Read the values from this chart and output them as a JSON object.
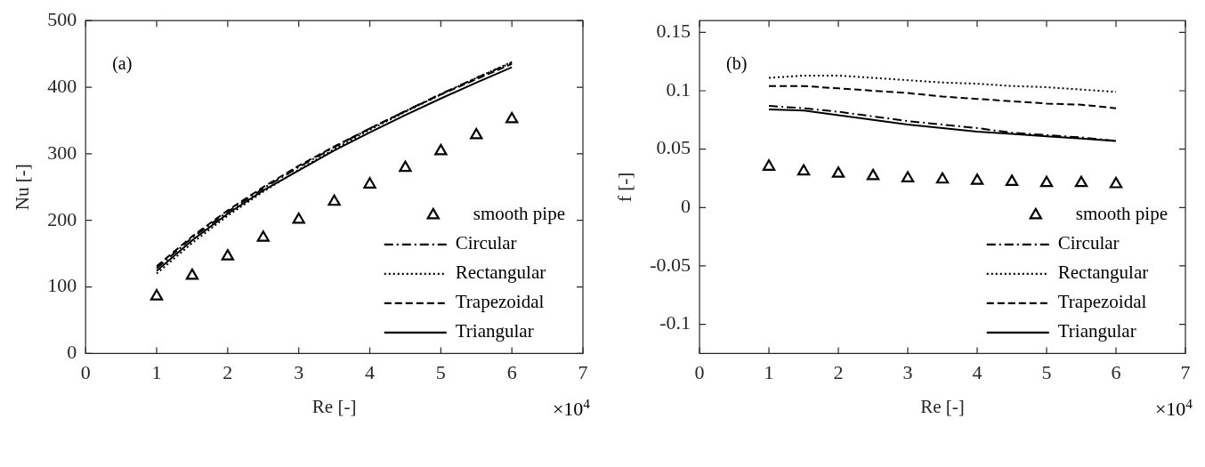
{
  "chart_data": [
    {
      "type": "line",
      "xlabel": "Re [-]",
      "ylabel": "Nu [-]",
      "annotations": [
        "(a)",
        "×10$^{4}$"
      ],
      "x": [
        1,
        1.5,
        2,
        2.5,
        3,
        3.5,
        4,
        4.5,
        5,
        5.5,
        6
      ],
      "xlim": [
        0,
        7
      ],
      "xticks": [
        0,
        1,
        2,
        3,
        4,
        5,
        6,
        7
      ],
      "ylim": [
        0,
        500
      ],
      "yticks": [
        0,
        100,
        200,
        300,
        400,
        500
      ],
      "grid": false,
      "legend": "bottom right",
      "series": [
        {
          "name": "smooth pipe",
          "type": "scatter",
          "marker": "triangle",
          "color": "#000000",
          "values": [
            86,
            117,
            146,
            174,
            201,
            228,
            254,
            279,
            304,
            328,
            352
          ]
        },
        {
          "name": "Circular",
          "color": "#000000",
          "line_style": "dashdot",
          "marker": "none",
          "values": [
            128,
            174,
            213,
            248,
            280,
            310,
            338,
            364,
            390,
            414,
            437
          ]
        },
        {
          "name": "Rectangular",
          "color": "#000000",
          "line_style": "dotted",
          "marker": "none",
          "values": [
            120,
            166,
            207,
            243,
            276,
            307,
            336,
            363,
            389,
            414,
            438
          ]
        },
        {
          "name": "Trapezoidal",
          "color": "#000000",
          "line_style": "dashed",
          "marker": "none",
          "values": [
            131,
            176,
            215,
            250,
            282,
            311,
            338,
            364,
            389,
            412,
            435
          ]
        },
        {
          "name": "Triangular",
          "color": "#000000",
          "line_style": "solid",
          "marker": "none",
          "values": [
            124,
            170,
            210,
            245,
            275,
            305,
            332,
            358,
            383,
            407,
            430
          ]
        }
      ]
    },
    {
      "type": "line",
      "xlabel": "Re [-]",
      "ylabel": "f [-]",
      "annotations": [
        "(b)",
        "×10$^{4}$"
      ],
      "x": [
        1,
        1.5,
        2,
        2.5,
        3,
        3.5,
        4,
        4.5,
        5,
        5.5,
        6
      ],
      "xlim": [
        0,
        7
      ],
      "xticks": [
        0,
        1,
        2,
        3,
        4,
        5,
        6,
        7
      ],
      "ylim": [
        -0.125,
        0.16
      ],
      "yticks": [
        -0.1,
        -0.05,
        0,
        0.05,
        0.1,
        0.15
      ],
      "grid": false,
      "legend": "bottom right",
      "series": [
        {
          "name": "smooth pipe",
          "type": "scatter",
          "marker": "triangle",
          "color": "#000000",
          "values": [
            0.035,
            0.031,
            0.029,
            0.027,
            0.025,
            0.024,
            0.023,
            0.022,
            0.021,
            0.021,
            0.02
          ]
        },
        {
          "name": "Circular",
          "color": "#000000",
          "line_style": "dashdot",
          "marker": "none",
          "values": [
            0.087,
            0.085,
            0.082,
            0.078,
            0.074,
            0.071,
            0.068,
            0.064,
            0.062,
            0.06,
            0.057
          ]
        },
        {
          "name": "Rectangular",
          "color": "#000000",
          "line_style": "dotted",
          "marker": "none",
          "values": [
            0.111,
            0.113,
            0.113,
            0.111,
            0.109,
            0.107,
            0.106,
            0.104,
            0.103,
            0.101,
            0.099
          ]
        },
        {
          "name": "Trapezoidal",
          "color": "#000000",
          "line_style": "dashed",
          "marker": "none",
          "values": [
            0.104,
            0.104,
            0.102,
            0.1,
            0.098,
            0.095,
            0.093,
            0.091,
            0.089,
            0.088,
            0.085
          ]
        },
        {
          "name": "Triangular",
          "color": "#000000",
          "line_style": "solid",
          "marker": "none",
          "values": [
            0.084,
            0.083,
            0.079,
            0.075,
            0.071,
            0.068,
            0.065,
            0.063,
            0.061,
            0.059,
            0.057
          ]
        }
      ]
    }
  ]
}
